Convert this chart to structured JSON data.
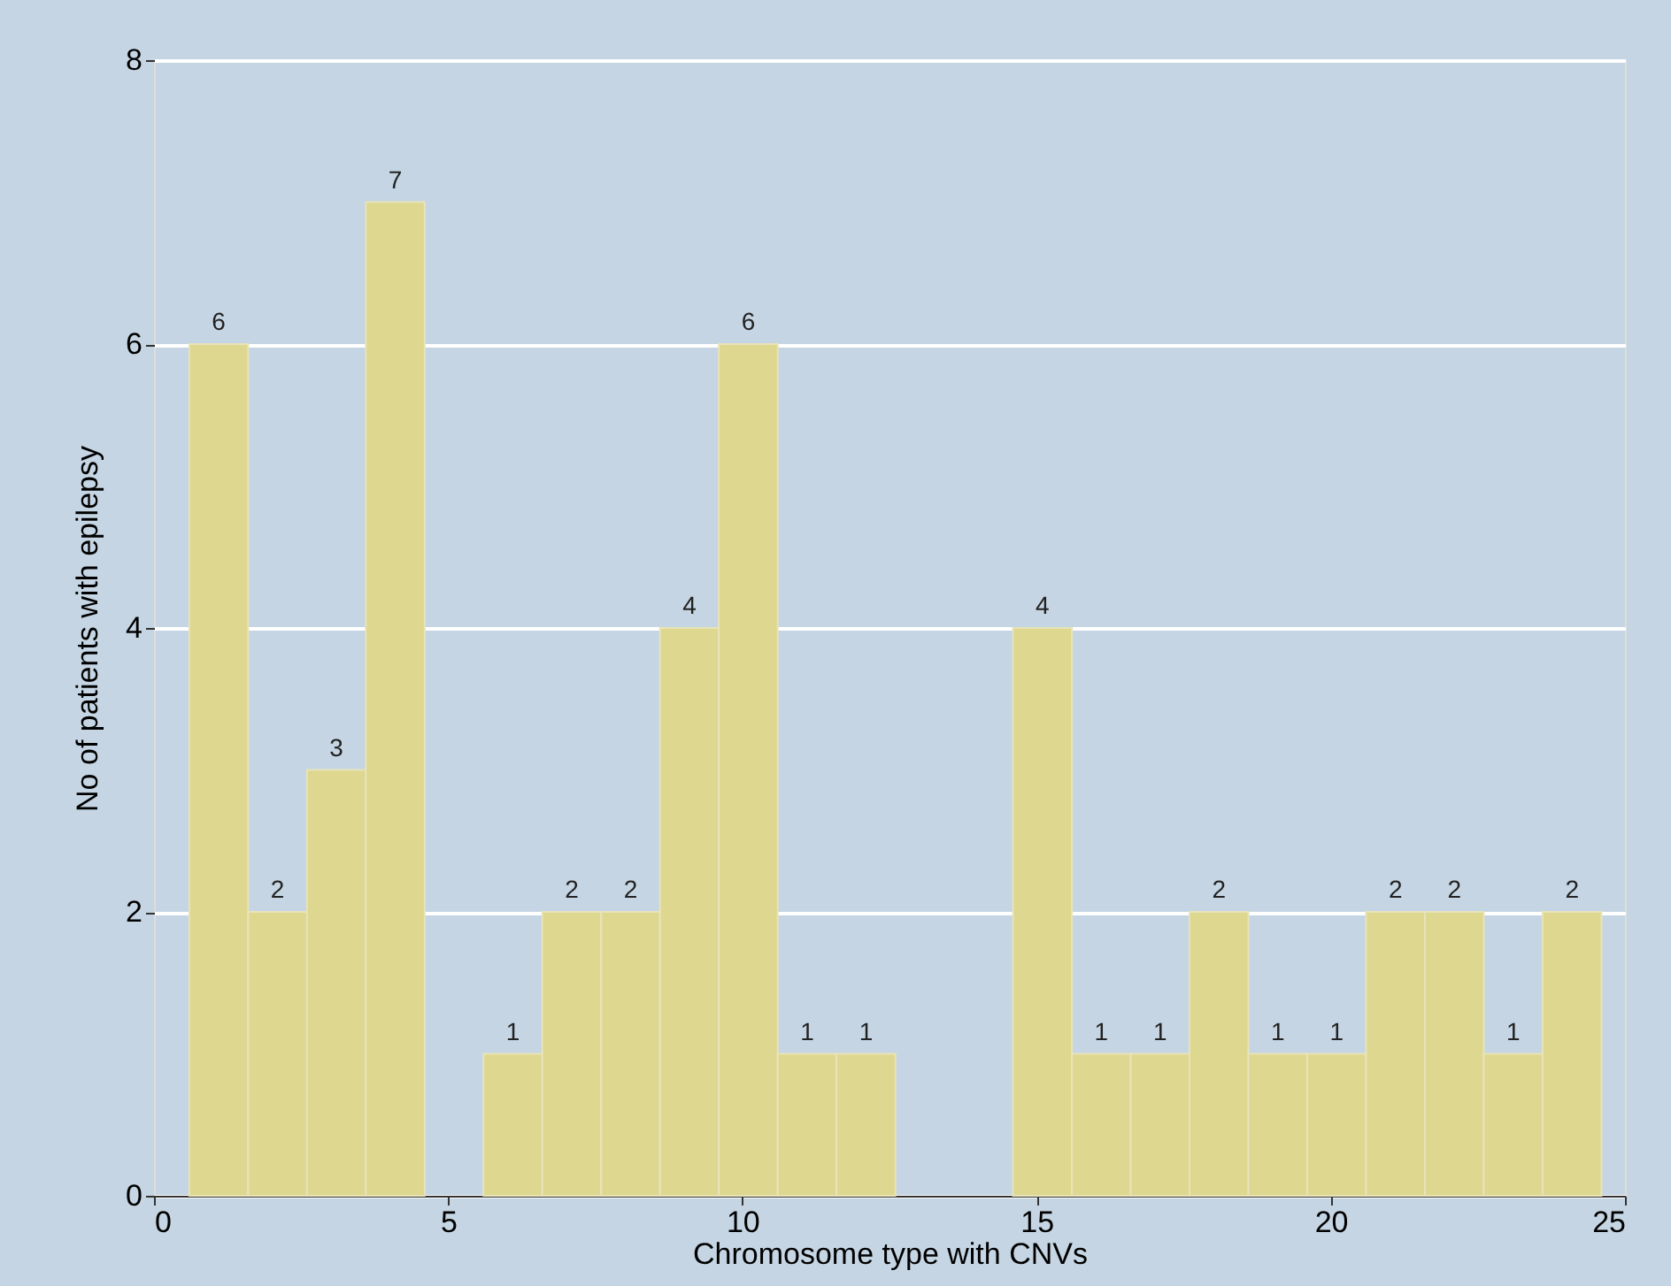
{
  "chart_data": {
    "type": "histogram",
    "xlabel": "Chromosome type with CNVs",
    "ylabel": "No of patients with epilepsy",
    "bins": [
      0.6,
      1.6,
      2.6,
      3.6,
      4.6,
      5.6,
      6.6,
      7.6,
      8.6,
      9.6,
      10.6,
      11.6,
      12.6,
      13.6,
      14.6,
      15.6,
      16.6,
      17.6,
      18.6,
      19.6,
      20.6,
      21.6,
      22.6,
      23.6,
      24.6
    ],
    "values": [
      6,
      2,
      3,
      7,
      null,
      1,
      2,
      2,
      4,
      6,
      1,
      1,
      null,
      null,
      4,
      1,
      1,
      2,
      1,
      1,
      2,
      2,
      1,
      2
    ],
    "color": "#ddd78f",
    "xlim": [
      0,
      25
    ],
    "xticks": [
      0,
      5,
      10,
      15,
      20,
      25
    ],
    "ylim": [
      0,
      8
    ],
    "yticks": [
      0,
      2,
      4,
      6,
      8
    ],
    "grid": "y",
    "data_labels": true
  }
}
